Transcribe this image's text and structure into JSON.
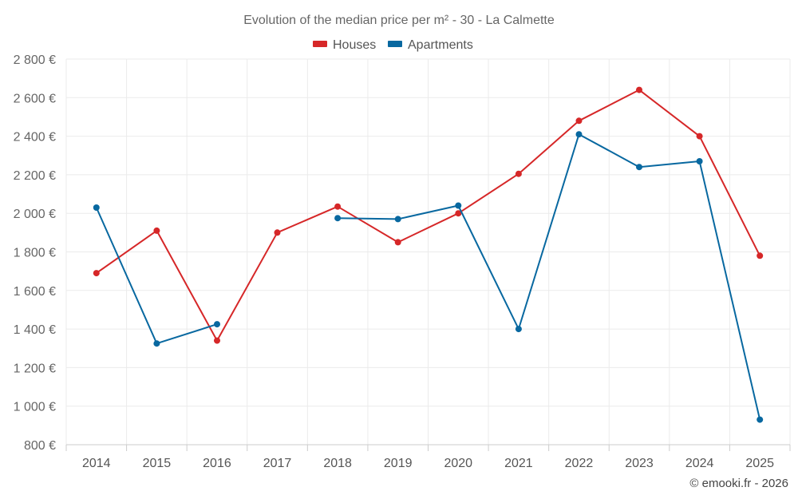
{
  "chart_data": {
    "type": "line",
    "title": "Evolution of the median price per m² - 30 - La Calmette",
    "categories": [
      "2014",
      "2015",
      "2016",
      "2017",
      "2018",
      "2019",
      "2020",
      "2021",
      "2022",
      "2023",
      "2024",
      "2025"
    ],
    "ylim": [
      800,
      2800
    ],
    "yticks": [
      800,
      1000,
      1200,
      1400,
      1600,
      1800,
      2000,
      2200,
      2400,
      2600,
      2800
    ],
    "ytick_labels": [
      "800 €",
      "1 000 €",
      "1 200 €",
      "1 400 €",
      "1 600 €",
      "1 800 €",
      "2 000 €",
      "2 200 €",
      "2 400 €",
      "2 600 €",
      "2 800 €"
    ],
    "grid": true,
    "legend_position": "top-center",
    "series": [
      {
        "name": "Houses",
        "color": "#d62728",
        "values": [
          1690,
          1910,
          1340,
          1900,
          2035,
          1850,
          2000,
          2205,
          2480,
          2640,
          2400,
          1780
        ]
      },
      {
        "name": "Apartments",
        "color": "#0868a0",
        "values": [
          2030,
          1325,
          1425,
          null,
          1975,
          1970,
          2040,
          1400,
          2410,
          2240,
          2270,
          930
        ]
      }
    ]
  },
  "credit": "© emooki.fr - 2026"
}
